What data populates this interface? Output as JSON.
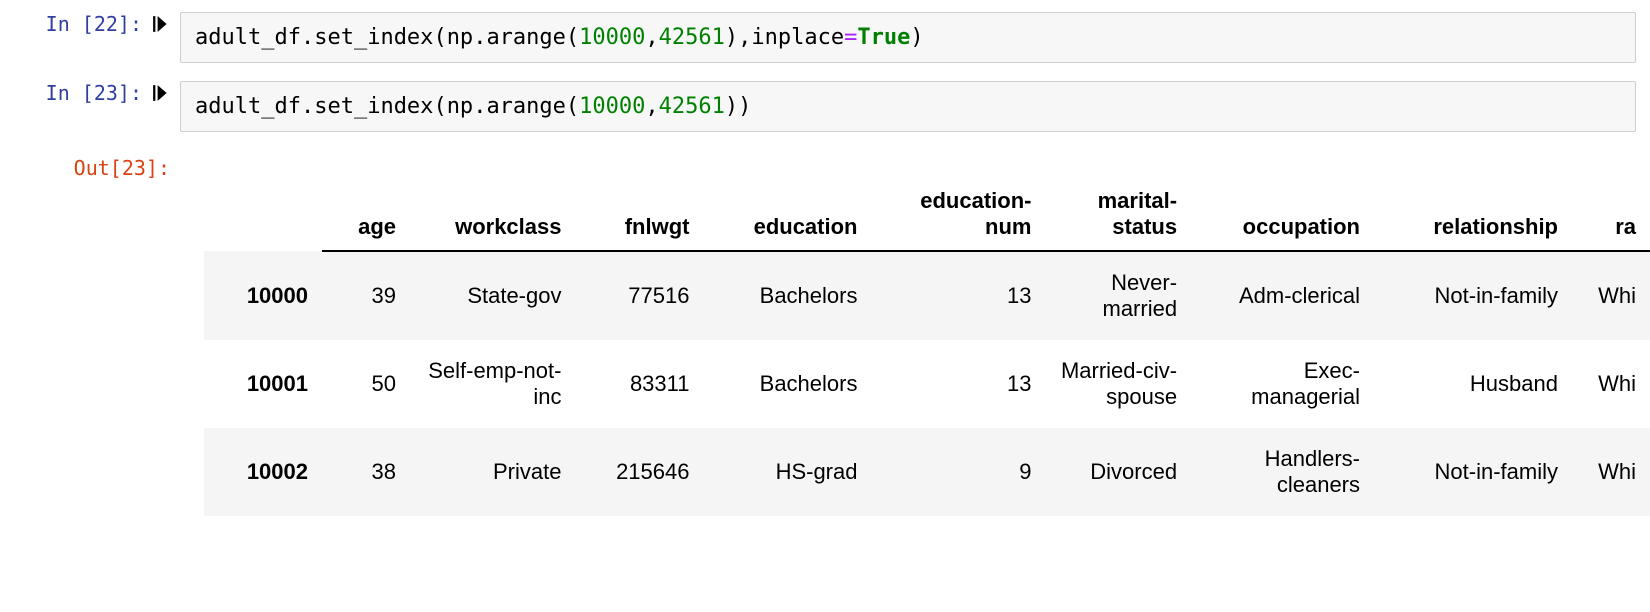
{
  "colors": {
    "prompt_in": "#303f9f",
    "prompt_out": "#d84315",
    "code_bg": "#f7f7f7",
    "code_border": "#cfcfcf",
    "number_token": "#008000",
    "keyword_token": "#008000",
    "operator_token": "#aa22ff",
    "row_stripe": "#f5f5f5",
    "header_rule": "#000000"
  },
  "cells": [
    {
      "kind": "code",
      "prompt": "In [22]:",
      "code_tokens": [
        {
          "t": "adult_df",
          "c": "name"
        },
        {
          "t": ".",
          "c": "punc"
        },
        {
          "t": "set_index",
          "c": "name"
        },
        {
          "t": "(",
          "c": "punc"
        },
        {
          "t": "np",
          "c": "name"
        },
        {
          "t": ".",
          "c": "punc"
        },
        {
          "t": "arange",
          "c": "name"
        },
        {
          "t": "(",
          "c": "punc"
        },
        {
          "t": "10000",
          "c": "number"
        },
        {
          "t": ",",
          "c": "punc"
        },
        {
          "t": "42561",
          "c": "number"
        },
        {
          "t": ")",
          "c": "punc"
        },
        {
          "t": ",",
          "c": "punc"
        },
        {
          "t": "inplace",
          "c": "name"
        },
        {
          "t": "=",
          "c": "op"
        },
        {
          "t": "True",
          "c": "kw"
        },
        {
          "t": ")",
          "c": "punc"
        }
      ]
    },
    {
      "kind": "code",
      "prompt": "In [23]:",
      "code_tokens": [
        {
          "t": "adult_df",
          "c": "name"
        },
        {
          "t": ".",
          "c": "punc"
        },
        {
          "t": "set_index",
          "c": "name"
        },
        {
          "t": "(",
          "c": "punc"
        },
        {
          "t": "np",
          "c": "name"
        },
        {
          "t": ".",
          "c": "punc"
        },
        {
          "t": "arange",
          "c": "name"
        },
        {
          "t": "(",
          "c": "punc"
        },
        {
          "t": "10000",
          "c": "number"
        },
        {
          "t": ",",
          "c": "punc"
        },
        {
          "t": "42561",
          "c": "number"
        },
        {
          "t": ")",
          "c": "punc"
        },
        {
          "t": ")",
          "c": "punc"
        }
      ]
    }
  ],
  "output": {
    "prompt": "Out[23]:",
    "dataframe": {
      "type": "table",
      "header_fontsize": 22,
      "header_fontweight": 700,
      "cell_fontsize": 22,
      "stripe_color": "#f5f5f5",
      "header_border_color": "#000000",
      "column_align": "right",
      "columns": [
        "age",
        "workclass",
        "fnlwgt",
        "education",
        "education-num",
        "marital-status",
        "occupation",
        "relationship",
        "ra"
      ],
      "index": [
        "10000",
        "10001",
        "10002"
      ],
      "rows": [
        [
          "39",
          "State-gov",
          "77516",
          "Bachelors",
          "13",
          "Never-married",
          "Adm-clerical",
          "Not-in-family",
          "Whi"
        ],
        [
          "50",
          "Self-emp-not-inc",
          "83311",
          "Bachelors",
          "13",
          "Married-civ-spouse",
          "Exec-managerial",
          "Husband",
          "Whi"
        ],
        [
          "38",
          "Private",
          "215646",
          "HS-grad",
          "9",
          "Divorced",
          "Handlers-cleaners",
          "Not-in-family",
          "Whi"
        ]
      ]
    }
  }
}
